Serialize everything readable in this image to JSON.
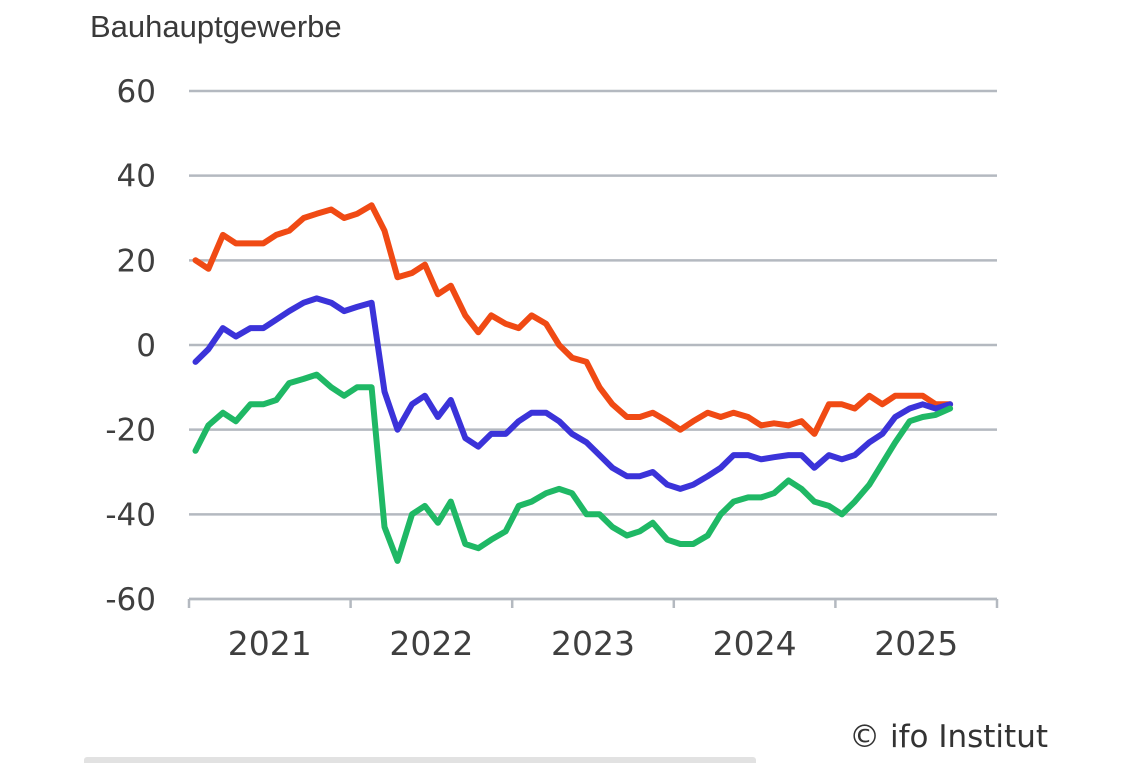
{
  "chart_data": {
    "type": "line",
    "title": "Bauhauptgewerbe",
    "xlabel": "",
    "ylabel": "",
    "ylim": [
      -60,
      60
    ],
    "yticks": [
      60,
      40,
      20,
      0,
      -20,
      -40,
      -60
    ],
    "ytick_labels": [
      "60",
      "40",
      "20",
      "0",
      "-20",
      "-40",
      "-60"
    ],
    "xlim": [
      2020.5,
      2025.5
    ],
    "x_tick_positions": [
      2021,
      2022,
      2023,
      2024,
      2025
    ],
    "x_tick_labels": [
      "2021",
      "2022",
      "2023",
      "2024",
      "2025"
    ],
    "grid": true,
    "credit": "© ifo Institut",
    "series": [
      {
        "color": "#f04a14",
        "points": [
          [
            2020.54,
            20
          ],
          [
            2020.62,
            18
          ],
          [
            2020.71,
            26
          ],
          [
            2020.79,
            24
          ],
          [
            2020.88,
            24
          ],
          [
            2020.96,
            24
          ],
          [
            2021.04,
            26
          ],
          [
            2021.12,
            27
          ],
          [
            2021.21,
            30
          ],
          [
            2021.29,
            31
          ],
          [
            2021.38,
            32
          ],
          [
            2021.46,
            30
          ],
          [
            2021.54,
            31
          ],
          [
            2021.63,
            33
          ],
          [
            2021.71,
            27
          ],
          [
            2021.79,
            16
          ],
          [
            2021.88,
            17
          ],
          [
            2021.96,
            19
          ],
          [
            2022.04,
            12
          ],
          [
            2022.12,
            14
          ],
          [
            2022.21,
            7
          ],
          [
            2022.29,
            3
          ],
          [
            2022.37,
            7
          ],
          [
            2022.46,
            5
          ],
          [
            2022.54,
            4
          ],
          [
            2022.62,
            7
          ],
          [
            2022.71,
            5
          ],
          [
            2022.79,
            0
          ],
          [
            2022.87,
            -3
          ],
          [
            2022.96,
            -4
          ],
          [
            2023.04,
            -10
          ],
          [
            2023.12,
            -14
          ],
          [
            2023.21,
            -17
          ],
          [
            2023.29,
            -17
          ],
          [
            2023.37,
            -16
          ],
          [
            2023.46,
            -18
          ],
          [
            2023.54,
            -20
          ],
          [
            2023.62,
            -18
          ],
          [
            2023.71,
            -16
          ],
          [
            2023.79,
            -17
          ],
          [
            2023.87,
            -16
          ],
          [
            2023.96,
            -17
          ],
          [
            2024.04,
            -19
          ],
          [
            2024.12,
            -18.5
          ],
          [
            2024.21,
            -19
          ],
          [
            2024.29,
            -18
          ],
          [
            2024.37,
            -21
          ],
          [
            2024.46,
            -14
          ],
          [
            2024.54,
            -14
          ],
          [
            2024.62,
            -15
          ],
          [
            2024.71,
            -12
          ],
          [
            2024.79,
            -14
          ],
          [
            2024.87,
            -12
          ],
          [
            2024.96,
            -12
          ],
          [
            2025.04,
            -12
          ],
          [
            2025.12,
            -14
          ],
          [
            2025.21,
            -14
          ]
        ]
      },
      {
        "color": "#3b33d9",
        "points": [
          [
            2020.54,
            -4
          ],
          [
            2020.62,
            -1
          ],
          [
            2020.71,
            4
          ],
          [
            2020.79,
            2
          ],
          [
            2020.88,
            4
          ],
          [
            2020.96,
            4
          ],
          [
            2021.04,
            6
          ],
          [
            2021.12,
            8
          ],
          [
            2021.21,
            10
          ],
          [
            2021.29,
            11
          ],
          [
            2021.38,
            10
          ],
          [
            2021.46,
            8
          ],
          [
            2021.54,
            9
          ],
          [
            2021.63,
            10
          ],
          [
            2021.71,
            -11
          ],
          [
            2021.79,
            -20
          ],
          [
            2021.88,
            -14
          ],
          [
            2021.96,
            -12
          ],
          [
            2022.04,
            -17
          ],
          [
            2022.12,
            -13
          ],
          [
            2022.21,
            -22
          ],
          [
            2022.29,
            -24
          ],
          [
            2022.37,
            -21
          ],
          [
            2022.46,
            -21
          ],
          [
            2022.54,
            -18
          ],
          [
            2022.62,
            -16
          ],
          [
            2022.71,
            -16
          ],
          [
            2022.79,
            -18
          ],
          [
            2022.87,
            -21
          ],
          [
            2022.96,
            -23
          ],
          [
            2023.04,
            -26
          ],
          [
            2023.12,
            -29
          ],
          [
            2023.21,
            -31
          ],
          [
            2023.29,
            -31
          ],
          [
            2023.37,
            -30
          ],
          [
            2023.46,
            -33
          ],
          [
            2023.54,
            -34
          ],
          [
            2023.62,
            -33
          ],
          [
            2023.71,
            -31
          ],
          [
            2023.79,
            -29
          ],
          [
            2023.87,
            -26
          ],
          [
            2023.96,
            -26
          ],
          [
            2024.04,
            -27
          ],
          [
            2024.12,
            -26.5
          ],
          [
            2024.21,
            -26
          ],
          [
            2024.29,
            -26
          ],
          [
            2024.37,
            -29
          ],
          [
            2024.46,
            -26
          ],
          [
            2024.54,
            -27
          ],
          [
            2024.62,
            -26
          ],
          [
            2024.71,
            -23
          ],
          [
            2024.79,
            -21
          ],
          [
            2024.87,
            -17
          ],
          [
            2024.96,
            -15
          ],
          [
            2025.04,
            -14
          ],
          [
            2025.12,
            -15
          ],
          [
            2025.21,
            -14
          ]
        ]
      },
      {
        "color": "#1fb865",
        "points": [
          [
            2020.54,
            -25
          ],
          [
            2020.62,
            -19
          ],
          [
            2020.71,
            -16
          ],
          [
            2020.79,
            -18
          ],
          [
            2020.88,
            -14
          ],
          [
            2020.96,
            -14
          ],
          [
            2021.04,
            -13
          ],
          [
            2021.12,
            -9
          ],
          [
            2021.21,
            -8
          ],
          [
            2021.29,
            -7
          ],
          [
            2021.38,
            -10
          ],
          [
            2021.46,
            -12
          ],
          [
            2021.54,
            -10
          ],
          [
            2021.63,
            -10
          ],
          [
            2021.71,
            -43
          ],
          [
            2021.79,
            -51
          ],
          [
            2021.88,
            -40
          ],
          [
            2021.96,
            -38
          ],
          [
            2022.04,
            -42
          ],
          [
            2022.12,
            -37
          ],
          [
            2022.21,
            -47
          ],
          [
            2022.29,
            -48
          ],
          [
            2022.37,
            -46
          ],
          [
            2022.46,
            -44
          ],
          [
            2022.54,
            -38
          ],
          [
            2022.62,
            -37
          ],
          [
            2022.71,
            -35
          ],
          [
            2022.79,
            -34
          ],
          [
            2022.87,
            -35
          ],
          [
            2022.96,
            -40
          ],
          [
            2023.04,
            -40
          ],
          [
            2023.12,
            -43
          ],
          [
            2023.21,
            -45
          ],
          [
            2023.29,
            -44
          ],
          [
            2023.37,
            -42
          ],
          [
            2023.46,
            -46
          ],
          [
            2023.54,
            -47
          ],
          [
            2023.62,
            -47
          ],
          [
            2023.71,
            -45
          ],
          [
            2023.79,
            -40
          ],
          [
            2023.87,
            -37
          ],
          [
            2023.96,
            -36
          ],
          [
            2024.04,
            -36
          ],
          [
            2024.12,
            -35
          ],
          [
            2024.21,
            -32
          ],
          [
            2024.29,
            -34
          ],
          [
            2024.37,
            -37
          ],
          [
            2024.46,
            -38
          ],
          [
            2024.54,
            -40
          ],
          [
            2024.62,
            -37
          ],
          [
            2024.71,
            -33
          ],
          [
            2024.79,
            -28
          ],
          [
            2024.87,
            -23
          ],
          [
            2024.96,
            -18
          ],
          [
            2025.04,
            -17
          ],
          [
            2025.12,
            -16.5
          ],
          [
            2025.21,
            -15
          ]
        ]
      }
    ]
  }
}
